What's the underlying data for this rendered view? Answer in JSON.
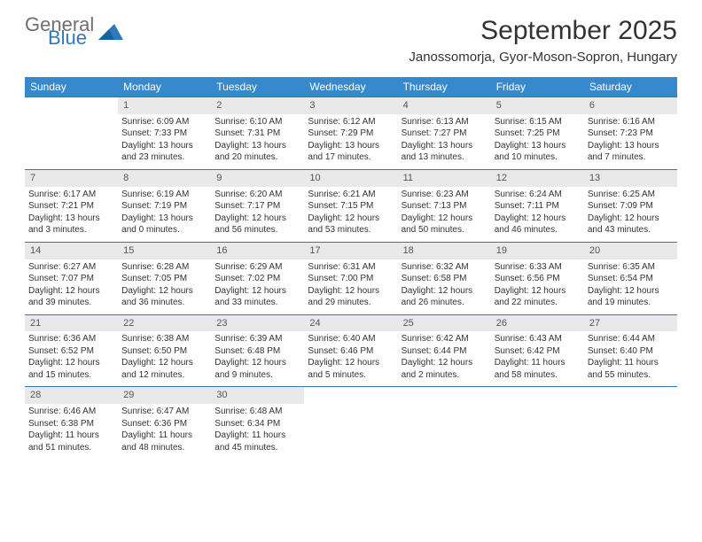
{
  "logo": {
    "word1": "General",
    "word2": "Blue"
  },
  "title": "September 2025",
  "location": "Janossomorja, Gyor-Moson-Sopron, Hungary",
  "colors": {
    "header_bg": "#3789ce",
    "header_text": "#ffffff",
    "daynum_bg": "#e9e9e9",
    "row_border": "#2e79bd",
    "body_text": "#333333",
    "logo_gray": "#6f6f6f",
    "logo_blue": "#2e79bd",
    "page_bg": "#ffffff"
  },
  "typography": {
    "title_fontsize": 30,
    "location_fontsize": 15,
    "weekday_fontsize": 12,
    "daynum_fontsize": 11,
    "cell_fontsize": 10,
    "logo_fontsize": 22
  },
  "weekdays": [
    "Sunday",
    "Monday",
    "Tuesday",
    "Wednesday",
    "Thursday",
    "Friday",
    "Saturday"
  ],
  "weeks": [
    [
      {
        "n": "",
        "lines": []
      },
      {
        "n": "1",
        "lines": [
          "Sunrise: 6:09 AM",
          "Sunset: 7:33 PM",
          "Daylight: 13 hours and 23 minutes."
        ]
      },
      {
        "n": "2",
        "lines": [
          "Sunrise: 6:10 AM",
          "Sunset: 7:31 PM",
          "Daylight: 13 hours and 20 minutes."
        ]
      },
      {
        "n": "3",
        "lines": [
          "Sunrise: 6:12 AM",
          "Sunset: 7:29 PM",
          "Daylight: 13 hours and 17 minutes."
        ]
      },
      {
        "n": "4",
        "lines": [
          "Sunrise: 6:13 AM",
          "Sunset: 7:27 PM",
          "Daylight: 13 hours and 13 minutes."
        ]
      },
      {
        "n": "5",
        "lines": [
          "Sunrise: 6:15 AM",
          "Sunset: 7:25 PM",
          "Daylight: 13 hours and 10 minutes."
        ]
      },
      {
        "n": "6",
        "lines": [
          "Sunrise: 6:16 AM",
          "Sunset: 7:23 PM",
          "Daylight: 13 hours and 7 minutes."
        ]
      }
    ],
    [
      {
        "n": "7",
        "lines": [
          "Sunrise: 6:17 AM",
          "Sunset: 7:21 PM",
          "Daylight: 13 hours and 3 minutes."
        ]
      },
      {
        "n": "8",
        "lines": [
          "Sunrise: 6:19 AM",
          "Sunset: 7:19 PM",
          "Daylight: 13 hours and 0 minutes."
        ]
      },
      {
        "n": "9",
        "lines": [
          "Sunrise: 6:20 AM",
          "Sunset: 7:17 PM",
          "Daylight: 12 hours and 56 minutes."
        ]
      },
      {
        "n": "10",
        "lines": [
          "Sunrise: 6:21 AM",
          "Sunset: 7:15 PM",
          "Daylight: 12 hours and 53 minutes."
        ]
      },
      {
        "n": "11",
        "lines": [
          "Sunrise: 6:23 AM",
          "Sunset: 7:13 PM",
          "Daylight: 12 hours and 50 minutes."
        ]
      },
      {
        "n": "12",
        "lines": [
          "Sunrise: 6:24 AM",
          "Sunset: 7:11 PM",
          "Daylight: 12 hours and 46 minutes."
        ]
      },
      {
        "n": "13",
        "lines": [
          "Sunrise: 6:25 AM",
          "Sunset: 7:09 PM",
          "Daylight: 12 hours and 43 minutes."
        ]
      }
    ],
    [
      {
        "n": "14",
        "lines": [
          "Sunrise: 6:27 AM",
          "Sunset: 7:07 PM",
          "Daylight: 12 hours and 39 minutes."
        ]
      },
      {
        "n": "15",
        "lines": [
          "Sunrise: 6:28 AM",
          "Sunset: 7:05 PM",
          "Daylight: 12 hours and 36 minutes."
        ]
      },
      {
        "n": "16",
        "lines": [
          "Sunrise: 6:29 AM",
          "Sunset: 7:02 PM",
          "Daylight: 12 hours and 33 minutes."
        ]
      },
      {
        "n": "17",
        "lines": [
          "Sunrise: 6:31 AM",
          "Sunset: 7:00 PM",
          "Daylight: 12 hours and 29 minutes."
        ]
      },
      {
        "n": "18",
        "lines": [
          "Sunrise: 6:32 AM",
          "Sunset: 6:58 PM",
          "Daylight: 12 hours and 26 minutes."
        ]
      },
      {
        "n": "19",
        "lines": [
          "Sunrise: 6:33 AM",
          "Sunset: 6:56 PM",
          "Daylight: 12 hours and 22 minutes."
        ]
      },
      {
        "n": "20",
        "lines": [
          "Sunrise: 6:35 AM",
          "Sunset: 6:54 PM",
          "Daylight: 12 hours and 19 minutes."
        ]
      }
    ],
    [
      {
        "n": "21",
        "lines": [
          "Sunrise: 6:36 AM",
          "Sunset: 6:52 PM",
          "Daylight: 12 hours and 15 minutes."
        ]
      },
      {
        "n": "22",
        "lines": [
          "Sunrise: 6:38 AM",
          "Sunset: 6:50 PM",
          "Daylight: 12 hours and 12 minutes."
        ]
      },
      {
        "n": "23",
        "lines": [
          "Sunrise: 6:39 AM",
          "Sunset: 6:48 PM",
          "Daylight: 12 hours and 9 minutes."
        ]
      },
      {
        "n": "24",
        "lines": [
          "Sunrise: 6:40 AM",
          "Sunset: 6:46 PM",
          "Daylight: 12 hours and 5 minutes."
        ]
      },
      {
        "n": "25",
        "lines": [
          "Sunrise: 6:42 AM",
          "Sunset: 6:44 PM",
          "Daylight: 12 hours and 2 minutes."
        ]
      },
      {
        "n": "26",
        "lines": [
          "Sunrise: 6:43 AM",
          "Sunset: 6:42 PM",
          "Daylight: 11 hours and 58 minutes."
        ]
      },
      {
        "n": "27",
        "lines": [
          "Sunrise: 6:44 AM",
          "Sunset: 6:40 PM",
          "Daylight: 11 hours and 55 minutes."
        ]
      }
    ],
    [
      {
        "n": "28",
        "lines": [
          "Sunrise: 6:46 AM",
          "Sunset: 6:38 PM",
          "Daylight: 11 hours and 51 minutes."
        ]
      },
      {
        "n": "29",
        "lines": [
          "Sunrise: 6:47 AM",
          "Sunset: 6:36 PM",
          "Daylight: 11 hours and 48 minutes."
        ]
      },
      {
        "n": "30",
        "lines": [
          "Sunrise: 6:48 AM",
          "Sunset: 6:34 PM",
          "Daylight: 11 hours and 45 minutes."
        ]
      },
      {
        "n": "",
        "lines": []
      },
      {
        "n": "",
        "lines": []
      },
      {
        "n": "",
        "lines": []
      },
      {
        "n": "",
        "lines": []
      }
    ]
  ]
}
